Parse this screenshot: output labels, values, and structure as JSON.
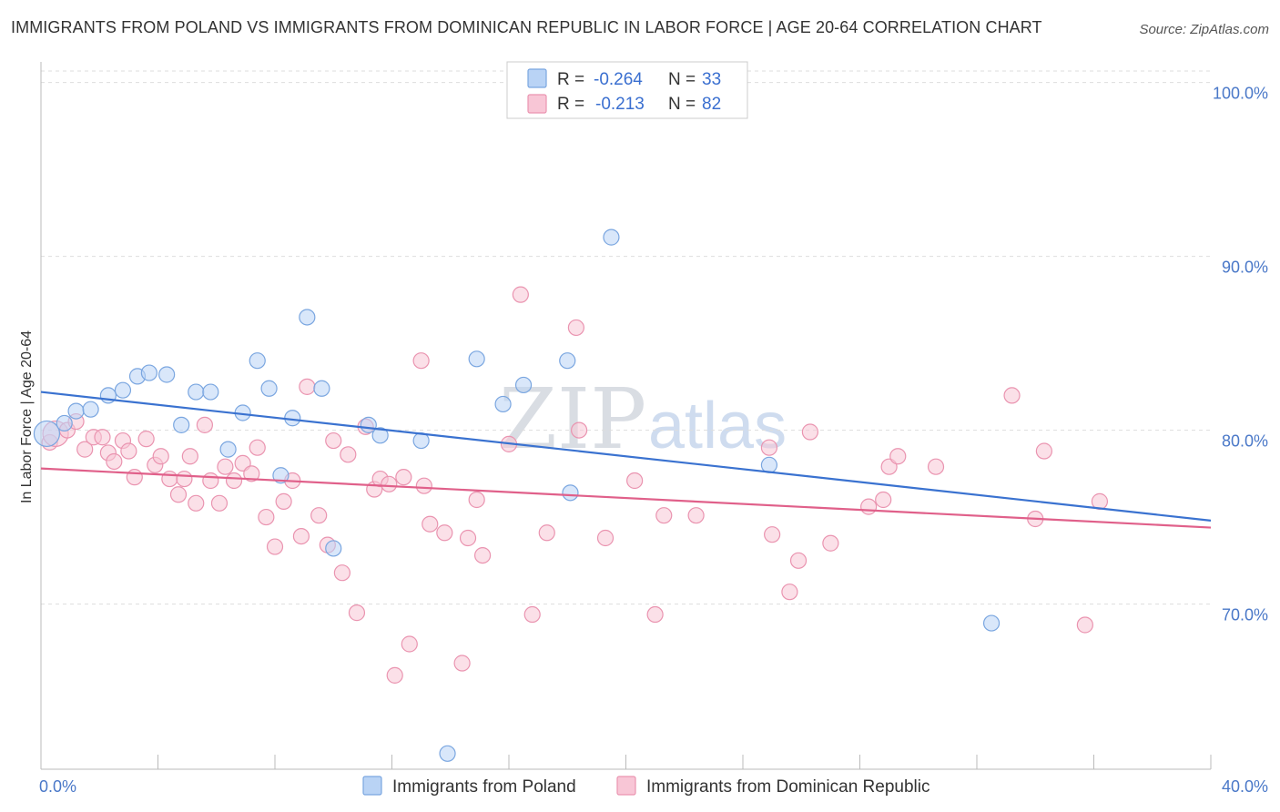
{
  "title": "IMMIGRANTS FROM POLAND VS IMMIGRANTS FROM DOMINICAN REPUBLIC IN LABOR FORCE | AGE 20-64 CORRELATION CHART",
  "source": "Source: ZipAtlas.com",
  "watermark": {
    "zip": "ZIP",
    "atlas": "atlas"
  },
  "colors": {
    "poland_fill": "#b9d3f5",
    "poland_stroke": "#7aa6e0",
    "poland_line": "#3a72d0",
    "dr_fill": "#f8c6d6",
    "dr_stroke": "#ea94b0",
    "dr_line": "#e0608a",
    "grid": "#dddddd",
    "tick_label": "#4a78c8"
  },
  "legend": {
    "r_label": "R =",
    "n_label": "N =",
    "series": [
      {
        "r": "-0.264",
        "n": "33"
      },
      {
        "r": "-0.213",
        "n": "82"
      }
    ]
  },
  "chart_data": {
    "type": "scatter",
    "ylabel": "In Labor Force | Age 20-64",
    "xlim": [
      0,
      40
    ],
    "ylim": [
      60.5,
      101.5
    ],
    "x_tick_labels": [
      "0.0%",
      "40.0%"
    ],
    "y_ticks": [
      70,
      80,
      90,
      100
    ],
    "y_tick_labels": [
      "70.0%",
      "80.0%",
      "90.0%",
      "100.0%"
    ],
    "grid": true,
    "series": [
      {
        "name": "Immigrants from Poland",
        "trend": [
          [
            0,
            82.2
          ],
          [
            40,
            74.8
          ]
        ],
        "points": [
          [
            0.2,
            79.8
          ],
          [
            0.8,
            80.4
          ],
          [
            1.2,
            81.1
          ],
          [
            1.7,
            81.2
          ],
          [
            2.3,
            82.0
          ],
          [
            2.8,
            82.3
          ],
          [
            3.3,
            83.1
          ],
          [
            3.7,
            83.3
          ],
          [
            4.3,
            83.2
          ],
          [
            4.8,
            80.3
          ],
          [
            5.3,
            82.2
          ],
          [
            5.8,
            82.2
          ],
          [
            6.4,
            78.9
          ],
          [
            6.9,
            81.0
          ],
          [
            7.4,
            84.0
          ],
          [
            7.8,
            82.4
          ],
          [
            8.2,
            77.4
          ],
          [
            8.6,
            80.7
          ],
          [
            9.1,
            86.5
          ],
          [
            9.6,
            82.4
          ],
          [
            10.0,
            73.2
          ],
          [
            11.2,
            80.3
          ],
          [
            11.6,
            79.7
          ],
          [
            13.0,
            79.4
          ],
          [
            13.9,
            61.4
          ],
          [
            14.9,
            84.1
          ],
          [
            15.8,
            81.5
          ],
          [
            16.5,
            82.6
          ],
          [
            18.0,
            84.0
          ],
          [
            18.1,
            76.4
          ],
          [
            19.5,
            91.1
          ],
          [
            24.9,
            78.0
          ],
          [
            32.5,
            68.9
          ]
        ]
      },
      {
        "name": "Immigrants from Dominican Republic",
        "trend": [
          [
            0,
            77.8
          ],
          [
            40,
            74.4
          ]
        ],
        "points": [
          [
            0.3,
            79.3
          ],
          [
            0.5,
            79.8
          ],
          [
            0.9,
            80.0
          ],
          [
            1.2,
            80.5
          ],
          [
            1.5,
            78.9
          ],
          [
            1.8,
            79.6
          ],
          [
            2.1,
            79.6
          ],
          [
            2.3,
            78.7
          ],
          [
            2.5,
            78.2
          ],
          [
            2.8,
            79.4
          ],
          [
            3.0,
            78.8
          ],
          [
            3.2,
            77.3
          ],
          [
            3.6,
            79.5
          ],
          [
            3.9,
            78.0
          ],
          [
            4.1,
            78.5
          ],
          [
            4.4,
            77.2
          ],
          [
            4.7,
            76.3
          ],
          [
            4.9,
            77.2
          ],
          [
            5.1,
            78.5
          ],
          [
            5.3,
            75.8
          ],
          [
            5.6,
            80.3
          ],
          [
            5.8,
            77.1
          ],
          [
            6.1,
            75.8
          ],
          [
            6.3,
            77.9
          ],
          [
            6.6,
            77.1
          ],
          [
            6.9,
            78.1
          ],
          [
            7.2,
            77.5
          ],
          [
            7.4,
            79.0
          ],
          [
            7.7,
            75.0
          ],
          [
            8.0,
            73.3
          ],
          [
            8.3,
            75.9
          ],
          [
            8.6,
            77.1
          ],
          [
            8.9,
            73.9
          ],
          [
            9.1,
            82.5
          ],
          [
            9.5,
            75.1
          ],
          [
            9.8,
            73.4
          ],
          [
            10.0,
            79.4
          ],
          [
            10.3,
            71.8
          ],
          [
            10.5,
            78.6
          ],
          [
            10.8,
            69.5
          ],
          [
            11.1,
            80.2
          ],
          [
            11.4,
            76.6
          ],
          [
            11.6,
            77.2
          ],
          [
            11.9,
            76.9
          ],
          [
            12.1,
            65.9
          ],
          [
            12.4,
            77.3
          ],
          [
            12.6,
            67.7
          ],
          [
            13.0,
            84.0
          ],
          [
            13.1,
            76.8
          ],
          [
            13.3,
            74.6
          ],
          [
            13.8,
            74.1
          ],
          [
            14.4,
            66.6
          ],
          [
            14.6,
            73.8
          ],
          [
            14.9,
            76.0
          ],
          [
            15.1,
            72.8
          ],
          [
            16.0,
            79.2
          ],
          [
            16.4,
            87.8
          ],
          [
            16.8,
            69.4
          ],
          [
            17.3,
            74.1
          ],
          [
            18.3,
            85.9
          ],
          [
            18.4,
            80.0
          ],
          [
            19.3,
            73.8
          ],
          [
            20.3,
            77.1
          ],
          [
            21.0,
            69.4
          ],
          [
            21.3,
            75.1
          ],
          [
            22.4,
            75.1
          ],
          [
            24.9,
            79.0
          ],
          [
            25.0,
            74.0
          ],
          [
            25.6,
            70.7
          ],
          [
            25.9,
            72.5
          ],
          [
            26.3,
            79.9
          ],
          [
            27.0,
            73.5
          ],
          [
            28.3,
            75.6
          ],
          [
            28.8,
            76.0
          ],
          [
            29.0,
            77.9
          ],
          [
            29.3,
            78.5
          ],
          [
            30.6,
            77.9
          ],
          [
            33.2,
            82.0
          ],
          [
            34.0,
            74.9
          ],
          [
            34.3,
            78.8
          ],
          [
            35.7,
            68.8
          ],
          [
            36.2,
            75.9
          ]
        ]
      }
    ]
  }
}
